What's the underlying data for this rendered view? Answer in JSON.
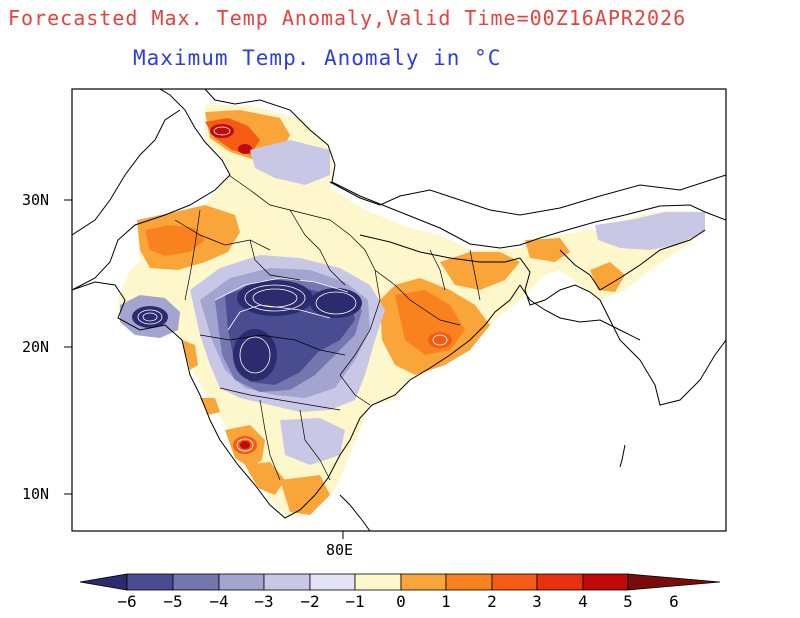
{
  "header": {
    "title": "Forecasted Max. Temp Anomaly,Valid Time=00Z16APR2026",
    "subtitle": "Maximum Temp. Anomaly in °C",
    "title_color": "#e8413a",
    "subtitle_color": "#2b3ee0"
  },
  "map": {
    "lat_labels": [
      "30N",
      "20N",
      "10N"
    ],
    "lon_labels": [
      "80E"
    ]
  },
  "colorbar": {
    "labels": [
      "−6",
      "−5",
      "−4",
      "−3",
      "−2",
      "−1",
      "0",
      "1",
      "2",
      "3",
      "4",
      "5",
      "6"
    ],
    "colors": [
      "#2b2b6e",
      "#4a4c91",
      "#7476b0",
      "#a3a4cf",
      "#c8c8e6",
      "#e3e3f5",
      "#fff7cc",
      "#f9a53a",
      "#f9821f",
      "#f45b14",
      "#e8300f",
      "#c00a0a",
      "#7a0b0b"
    ]
  }
}
